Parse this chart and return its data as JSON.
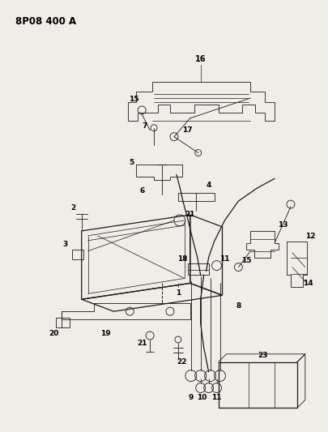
{
  "title": "8P08 400 A",
  "background_color": "#f0ede8",
  "line_color": "#1a1a1a",
  "text_color": "#000000",
  "fig_width": 4.06,
  "fig_height": 5.33,
  "dpi": 100
}
